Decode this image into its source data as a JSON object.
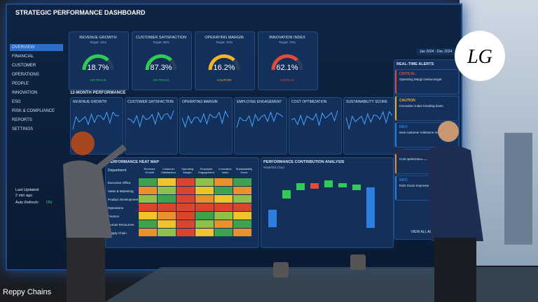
{
  "dashboard": {
    "title": "STRATEGIC PERFORMANCE DASHBOARD",
    "date_range": "Jan 2024 - Dec 2024",
    "nav": [
      "OVERVIEW",
      "FINANCIAL",
      "CUSTOMER",
      "OPERATIONS",
      "PEOPLE",
      "INNOVATION",
      "ESG",
      "RISK & COMPLIANCE",
      "REPORTS",
      "SETTINGS"
    ],
    "last_updated": "Last Updated:",
    "last_updated_value": "2 min ago",
    "auto_refresh": "Auto Refresh:",
    "auto_refresh_value": "ON",
    "kpis": [
      {
        "title": "REVENUE GROWTH",
        "target": "Target: 15%",
        "value": "18.7%",
        "status": "ON TRACK"
      },
      {
        "title": "CUSTOMER SATISFACTION",
        "target": "Target: 85%",
        "value": "87.3%",
        "status": "ON TRACK"
      },
      {
        "title": "OPERATING MARGIN",
        "target": "Target: 20%",
        "value": "16.2%",
        "status": "CAUTION"
      },
      {
        "title": "INNOVATION INDEX",
        "target": "Target: 70%",
        "value": "62.1%",
        "status": "CRITICAL"
      }
    ],
    "trend_section": "12-MONTH PERFORMANCE",
    "trends": [
      "REVENUE GROWTH",
      "CUSTOMER SATISFACTION",
      "OPERATING MARGIN",
      "EMPLOYEE ENGAGEMENT",
      "COST OPTIMIZATION",
      "SUSTAINABILITY SCORE"
    ],
    "heatmap": {
      "title": "PERFORMANCE HEAT MAP",
      "corner": "Department",
      "columns": [
        "Revenue Growth",
        "Customer Satisfaction",
        "Operating Margin",
        "Employee Engagement",
        "Innovation Index",
        "Sustainability Score"
      ],
      "rows": [
        "Executive Office",
        "Sales & Marketing",
        "Product Development",
        "Operations",
        "Finance",
        "Human Resources",
        "Supply Chain"
      ]
    },
    "contribution": {
      "title": "PERFORMANCE CONTRIBUTION ANALYSIS",
      "subtitle": "Waterfall Chart"
    },
    "alerts": {
      "title": "REAL-TIME ALERTS",
      "items": [
        {
          "level": "CRITICAL",
          "text": "Operating Margin below target"
        },
        {
          "level": "CAUTION",
          "text": "Innovation Index trending down"
        },
        {
          "level": "INFO",
          "text": "New customer milestone reached"
        },
        {
          "level": "WARNING",
          "text": "Cost optimization behind target"
        },
        {
          "level": "INFO",
          "text": "ESG Score Improved"
        }
      ],
      "view_all": "VIEW ALL ALERTS"
    }
  },
  "logo": "LG",
  "caption": "Reppy Chains"
}
